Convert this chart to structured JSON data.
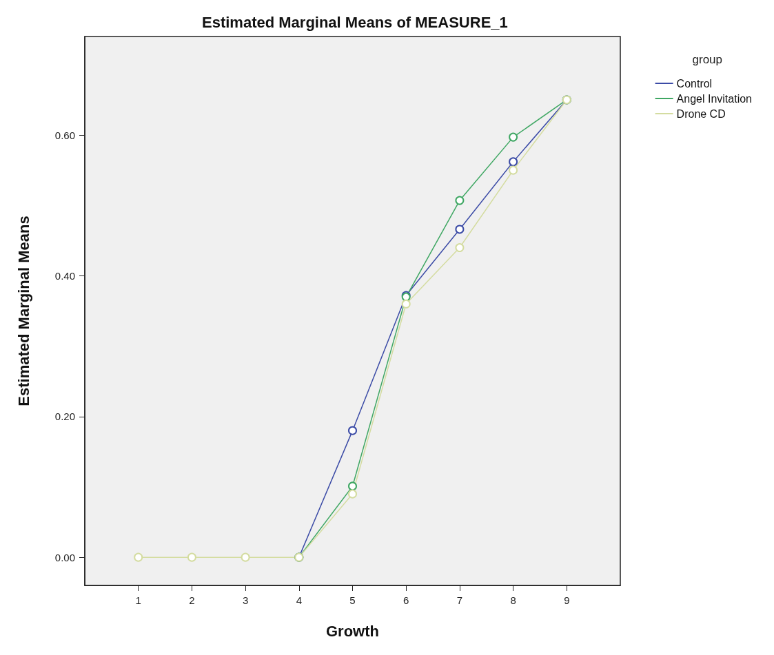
{
  "chart_data": {
    "type": "line",
    "title": "Estimated Marginal Means of MEASURE_1",
    "xlabel": "Growth",
    "ylabel": "Estimated Marginal Means",
    "legend_title": "group",
    "x": [
      1,
      2,
      3,
      4,
      5,
      6,
      7,
      8,
      9
    ],
    "series": [
      {
        "name": "Control",
        "color": "#3b4ba6",
        "values": [
          null,
          null,
          null,
          0,
          0.18,
          0.372,
          0.466,
          0.562,
          0.65
        ]
      },
      {
        "name": "Angel Invitation",
        "color": "#3fa763",
        "values": [
          null,
          null,
          null,
          0,
          0.101,
          0.37,
          0.507,
          0.597,
          0.65
        ]
      },
      {
        "name": "Drone CD",
        "color": "#d4dca0",
        "values": [
          0,
          0,
          0,
          0,
          0.09,
          0.36,
          0.44,
          0.55,
          0.65
        ]
      }
    ],
    "xlim": [
      0,
      10
    ],
    "xticks": [
      1,
      2,
      3,
      4,
      5,
      6,
      7,
      8,
      9
    ],
    "ylim": [
      -0.04,
      0.74
    ],
    "yticks": [
      {
        "value": 0,
        "label": "0.00"
      },
      {
        "value": 0.2,
        "label": "0.20"
      },
      {
        "value": 0.4,
        "label": "0.40"
      },
      {
        "value": 0.6,
        "label": "0.60"
      }
    ],
    "grid": false,
    "legend": "top right",
    "marker": "circle",
    "line_style": "solid"
  }
}
